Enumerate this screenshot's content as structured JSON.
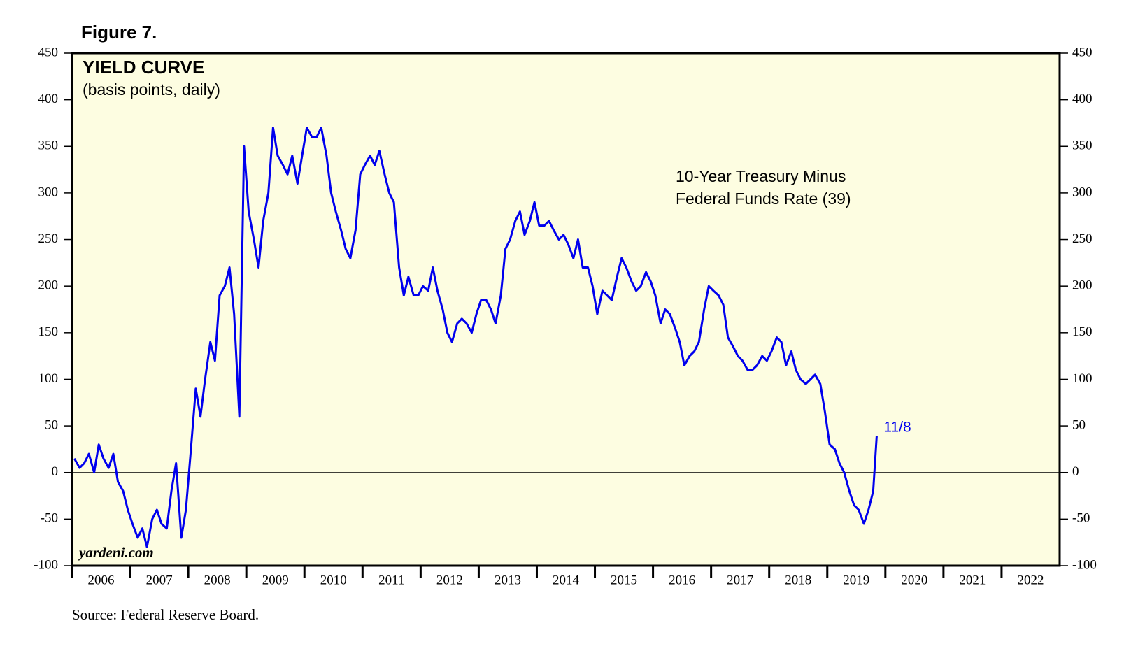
{
  "figure_label": "Figure 7.",
  "source": "Source: Federal Reserve Board.",
  "chart_data": {
    "type": "line",
    "title": "YIELD CURVE",
    "subtitle": "(basis points, daily)",
    "watermark": "yardeni.com",
    "annotations": [
      "10-Year Treasury Minus",
      "Federal Funds Rate (39)"
    ],
    "end_label": "11/8",
    "xlim": [
      2006,
      2023
    ],
    "xticks": [
      2006,
      2007,
      2008,
      2009,
      2010,
      2011,
      2012,
      2013,
      2014,
      2015,
      2016,
      2017,
      2018,
      2019,
      2020,
      2021,
      2022
    ],
    "ylim": [
      -100,
      450
    ],
    "yticks": [
      -100,
      -50,
      0,
      50,
      100,
      150,
      200,
      250,
      300,
      350,
      400,
      450
    ],
    "y2lim": [
      -100,
      450
    ],
    "y2ticks": [
      -100,
      -50,
      0,
      50,
      100,
      150,
      200,
      250,
      300,
      350,
      400,
      450
    ],
    "background": "#fdfde1",
    "x": [
      2006.04,
      2006.13,
      2006.21,
      2006.29,
      2006.38,
      2006.46,
      2006.54,
      2006.63,
      2006.71,
      2006.79,
      2006.88,
      2006.96,
      2007.04,
      2007.13,
      2007.21,
      2007.29,
      2007.38,
      2007.46,
      2007.54,
      2007.63,
      2007.71,
      2007.79,
      2007.88,
      2007.96,
      2008.04,
      2008.13,
      2008.21,
      2008.29,
      2008.38,
      2008.46,
      2008.54,
      2008.63,
      2008.71,
      2008.79,
      2008.88,
      2008.96,
      2009.04,
      2009.13,
      2009.21,
      2009.29,
      2009.38,
      2009.46,
      2009.54,
      2009.63,
      2009.71,
      2009.79,
      2009.88,
      2009.96,
      2010.04,
      2010.13,
      2010.21,
      2010.29,
      2010.38,
      2010.46,
      2010.54,
      2010.63,
      2010.71,
      2010.79,
      2010.88,
      2010.96,
      2011.04,
      2011.13,
      2011.21,
      2011.29,
      2011.38,
      2011.46,
      2011.54,
      2011.63,
      2011.71,
      2011.79,
      2011.88,
      2011.96,
      2012.04,
      2012.13,
      2012.21,
      2012.29,
      2012.38,
      2012.46,
      2012.54,
      2012.63,
      2012.71,
      2012.79,
      2012.88,
      2012.96,
      2013.04,
      2013.13,
      2013.21,
      2013.29,
      2013.38,
      2013.46,
      2013.54,
      2013.63,
      2013.71,
      2013.79,
      2013.88,
      2013.96,
      2014.04,
      2014.13,
      2014.21,
      2014.29,
      2014.38,
      2014.46,
      2014.54,
      2014.63,
      2014.71,
      2014.79,
      2014.88,
      2014.96,
      2015.04,
      2015.13,
      2015.21,
      2015.29,
      2015.38,
      2015.46,
      2015.54,
      2015.63,
      2015.71,
      2015.79,
      2015.88,
      2015.96,
      2016.04,
      2016.13,
      2016.21,
      2016.29,
      2016.38,
      2016.46,
      2016.54,
      2016.63,
      2016.71,
      2016.79,
      2016.88,
      2016.96,
      2017.04,
      2017.13,
      2017.21,
      2017.29,
      2017.38,
      2017.46,
      2017.54,
      2017.63,
      2017.71,
      2017.79,
      2017.88,
      2017.96,
      2018.04,
      2018.13,
      2018.21,
      2018.29,
      2018.38,
      2018.46,
      2018.54,
      2018.63,
      2018.71,
      2018.79,
      2018.88,
      2018.96,
      2019.04,
      2019.13,
      2019.21,
      2019.29,
      2019.38,
      2019.46,
      2019.54,
      2019.63,
      2019.71,
      2019.79,
      2019.85
    ],
    "series": [
      {
        "name": "10-Year Treasury Minus Federal Funds Rate",
        "color": "#0000ee",
        "values": [
          15,
          5,
          10,
          20,
          0,
          30,
          15,
          5,
          20,
          -10,
          -20,
          -40,
          -55,
          -70,
          -60,
          -80,
          -50,
          -40,
          -55,
          -60,
          -20,
          10,
          -70,
          -40,
          20,
          90,
          60,
          100,
          140,
          120,
          190,
          200,
          220,
          170,
          60,
          350,
          280,
          250,
          220,
          270,
          300,
          370,
          340,
          330,
          320,
          340,
          310,
          340,
          370,
          360,
          360,
          370,
          340,
          300,
          280,
          260,
          240,
          230,
          260,
          320,
          330,
          340,
          330,
          345,
          320,
          300,
          290,
          220,
          190,
          210,
          190,
          190,
          200,
          195,
          220,
          195,
          175,
          150,
          140,
          160,
          165,
          160,
          150,
          170,
          185,
          185,
          175,
          160,
          190,
          240,
          250,
          270,
          280,
          255,
          270,
          290,
          265,
          265,
          270,
          260,
          250,
          255,
          245,
          230,
          250,
          220,
          220,
          200,
          170,
          195,
          190,
          185,
          210,
          230,
          220,
          205,
          195,
          200,
          215,
          205,
          190,
          160,
          175,
          170,
          155,
          140,
          115,
          125,
          130,
          140,
          175,
          200,
          195,
          190,
          180,
          145,
          135,
          125,
          120,
          110,
          110,
          115,
          125,
          120,
          130,
          145,
          140,
          115,
          130,
          110,
          100,
          95,
          100,
          105,
          95,
          65,
          30,
          25,
          10,
          0,
          -20,
          -35,
          -40,
          -55,
          -40,
          -20,
          39
        ]
      }
    ]
  }
}
